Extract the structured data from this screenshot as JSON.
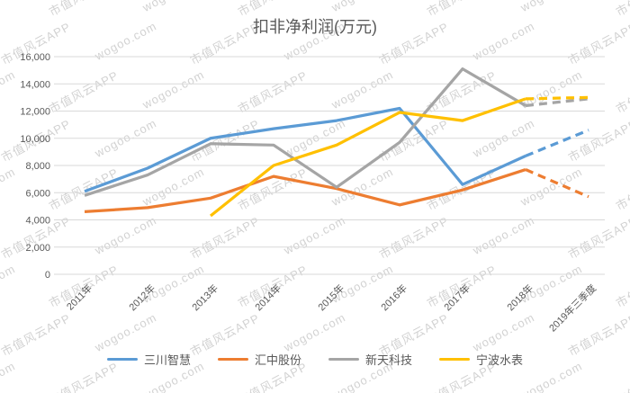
{
  "watermark": {
    "texts": [
      "市值风云APP",
      "wogoo.com"
    ]
  },
  "chart_data": {
    "type": "line",
    "title": "扣非净利润(万元)",
    "categories": [
      "2011年",
      "2012年",
      "2013年",
      "2014年",
      "2015年",
      "2016年",
      "2017年",
      "2018年",
      "2019年三季度"
    ],
    "series": [
      {
        "name": "三川智慧",
        "color": "#5B9BD5",
        "values": [
          6100,
          7800,
          10000,
          10700,
          11300,
          12200,
          6600,
          8700,
          10600
        ],
        "last_segment_dashed": true
      },
      {
        "name": "汇中股份",
        "color": "#ED7D31",
        "values": [
          4600,
          4900,
          5600,
          7200,
          6300,
          5100,
          6200,
          7700,
          5700
        ],
        "last_segment_dashed": true
      },
      {
        "name": "新天科技",
        "color": "#A5A5A5",
        "values": [
          5800,
          7300,
          9600,
          9500,
          6400,
          9700,
          15100,
          12400,
          12900
        ],
        "last_segment_dashed": true
      },
      {
        "name": "宁波水表",
        "color": "#FFC000",
        "values": [
          null,
          null,
          4300,
          8000,
          9500,
          11900,
          11300,
          12900,
          13000
        ],
        "last_segment_dashed": true
      }
    ],
    "ylim": [
      0,
      16000
    ],
    "y_tick_step": 2000,
    "y_tick_labels": [
      "0",
      "2,000",
      "4,000",
      "6,000",
      "8,000",
      "10,000",
      "12,000",
      "14,000",
      "16,000"
    ],
    "grid": true,
    "legend_position": "bottom",
    "colors": {
      "grid": "#d9d9d9",
      "text": "#595959"
    }
  }
}
